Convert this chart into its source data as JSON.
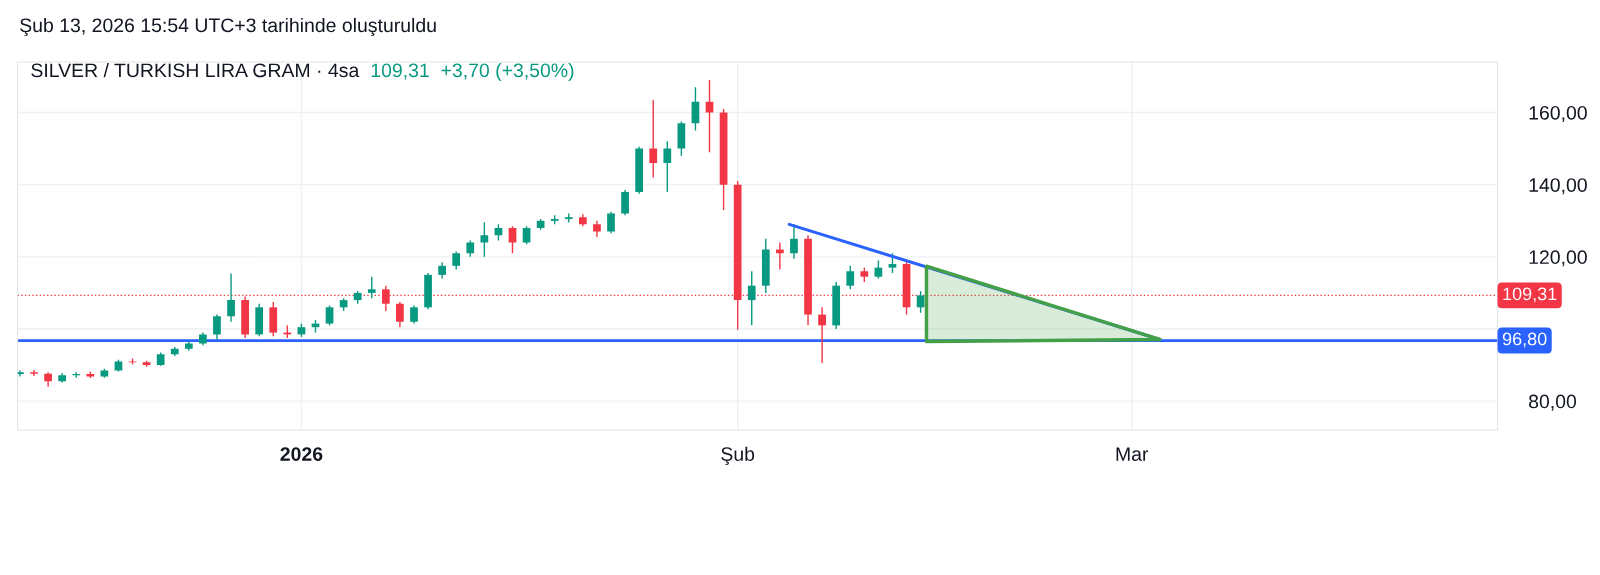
{
  "chart_data": {
    "type": "candlestick",
    "title": "SILVER / TURKISH LIRA GRAM · 4sa",
    "subtitle": "109,31  +3,70 (+3,50%)",
    "annotations": [
      "Şub 13, 2026 15:54 UTC+3 tarihinde oluşturuldu"
    ],
    "x": [
      "2025-12-12",
      "2025-12-13",
      "2025-12-14",
      "2025-12-15",
      "2025-12-16",
      "2025-12-17",
      "2025-12-18",
      "2025-12-19",
      "2025-12-20",
      "2025-12-21",
      "2025-12-22",
      "2025-12-23",
      "2025-12-24",
      "2025-12-25",
      "2025-12-26",
      "2025-12-27",
      "2025-12-28",
      "2025-12-29",
      "2025-12-30",
      "2025-12-31",
      "2026-01-01",
      "2026-01-02",
      "2026-01-03",
      "2026-01-04",
      "2026-01-05",
      "2026-01-06",
      "2026-01-07",
      "2026-01-08",
      "2026-01-09",
      "2026-01-10",
      "2026-01-11",
      "2026-01-12",
      "2026-01-13",
      "2026-01-14",
      "2026-01-15",
      "2026-01-16",
      "2026-01-17",
      "2026-01-18",
      "2026-01-19",
      "2026-01-20",
      "2026-01-21",
      "2026-01-22",
      "2026-01-23",
      "2026-01-24",
      "2026-01-25",
      "2026-01-26",
      "2026-01-27",
      "2026-01-28",
      "2026-01-29",
      "2026-01-30",
      "2026-01-31",
      "2026-02-01",
      "2026-02-02",
      "2026-02-03",
      "2026-02-04",
      "2026-02-05",
      "2026-02-06",
      "2026-02-07",
      "2026-02-08",
      "2026-02-09",
      "2026-02-10",
      "2026-02-11",
      "2026-02-12",
      "2026-02-13",
      "2026-02-14"
    ],
    "ohlc": [
      [
        87.5,
        88.5,
        86.8,
        88
      ],
      [
        88,
        88.6,
        87,
        87.6
      ],
      [
        87.6,
        88,
        84,
        85.5
      ],
      [
        85.5,
        87.8,
        85.2,
        87.2
      ],
      [
        87.2,
        88,
        86.5,
        87.5
      ],
      [
        87.5,
        88.2,
        86.4,
        86.8
      ],
      [
        86.8,
        89,
        86.5,
        88.5
      ],
      [
        88.5,
        91.5,
        88.2,
        91
      ],
      [
        91,
        91.8,
        90.2,
        90.8
      ],
      [
        90.8,
        91.2,
        89.5,
        90
      ],
      [
        90,
        93.5,
        89.8,
        93
      ],
      [
        93,
        95,
        92.5,
        94.5
      ],
      [
        94.5,
        96.5,
        94,
        96
      ],
      [
        96,
        99,
        95.5,
        98.5
      ],
      [
        98.5,
        104,
        97,
        103.5
      ],
      [
        103.5,
        115.4,
        102,
        108
      ],
      [
        108,
        109,
        97.5,
        98.5
      ],
      [
        98.5,
        107,
        98,
        106
      ],
      [
        106,
        107.5,
        98,
        99
      ],
      [
        99,
        101,
        97.5,
        98.5
      ],
      [
        98.5,
        101.5,
        97.8,
        100.5
      ],
      [
        100.5,
        102.5,
        99,
        101.5
      ],
      [
        101.5,
        106.5,
        101,
        106
      ],
      [
        106,
        108.5,
        105,
        108
      ],
      [
        108,
        110.5,
        107,
        110
      ],
      [
        110,
        114.5,
        108.5,
        111
      ],
      [
        111,
        112,
        105,
        107
      ],
      [
        107,
        107.5,
        100.5,
        102
      ],
      [
        102,
        106.5,
        101.5,
        106
      ],
      [
        106,
        115.5,
        105.5,
        115
      ],
      [
        115,
        118.5,
        114,
        117.5
      ],
      [
        117.5,
        121.5,
        116.5,
        121
      ],
      [
        121,
        124.5,
        120,
        124
      ],
      [
        124,
        129.6,
        120,
        126
      ],
      [
        126,
        129,
        124.5,
        128
      ],
      [
        128,
        128.5,
        121,
        124
      ],
      [
        124,
        128.5,
        123.5,
        128
      ],
      [
        128,
        130.5,
        127.5,
        130
      ],
      [
        130,
        131.5,
        129,
        130.5
      ],
      [
        130.5,
        132,
        129.5,
        131
      ],
      [
        131,
        131.8,
        128.5,
        129
      ],
      [
        129,
        130,
        125.5,
        127
      ],
      [
        127,
        132.5,
        126.5,
        132
      ],
      [
        132,
        138.5,
        131.5,
        138
      ],
      [
        138,
        150.5,
        137.5,
        150
      ],
      [
        150,
        163.5,
        142,
        146
      ],
      [
        146,
        152,
        138,
        150
      ],
      [
        150,
        157.5,
        148,
        157
      ],
      [
        157,
        167,
        155,
        163
      ],
      [
        163,
        169,
        149,
        160
      ],
      [
        160,
        161,
        133,
        140
      ],
      [
        140,
        141,
        99.8,
        108
      ],
      [
        108,
        116,
        101,
        112
      ],
      [
        112,
        125,
        110,
        122
      ],
      [
        122,
        124,
        116.5,
        121
      ],
      [
        121,
        129,
        119.5,
        125
      ],
      [
        125,
        126,
        101,
        104
      ],
      [
        104,
        106,
        90.6,
        101
      ],
      [
        101,
        113,
        100,
        112
      ],
      [
        112,
        117.5,
        111,
        116
      ],
      [
        116,
        117,
        113,
        114.5
      ],
      [
        114.5,
        119,
        114,
        117
      ],
      [
        117,
        121,
        115.5,
        118
      ],
      [
        118,
        119,
        104,
        106
      ],
      [
        106,
        110.5,
        104.5,
        109.31
      ]
    ],
    "series": [
      {
        "type": "line",
        "color": "#2962ff",
        "x": [
          "2026-02-04T16:00",
          "2026-03-03"
        ],
        "values": [
          129,
          97.1
        ]
      },
      {
        "type": "area",
        "color": "#43a047",
        "x": [
          "2026-02-14T10:00",
          "2026-02-14T10:00",
          "2026-03-03",
          "2026-02-14T10:00"
        ],
        "values": [
          96.5,
          117.4,
          97.1,
          96.5
        ]
      }
    ],
    "ref_lines": [
      {
        "axis": "y",
        "value": 96.8,
        "label": "96,80",
        "color": "#2962ff",
        "line_style": "solid"
      },
      {
        "axis": "y",
        "value": 109.31,
        "label": "109,31",
        "color": "#f23645",
        "line_style": "dotted"
      }
    ],
    "xlim": [
      "2025-12-11T20:00",
      "2026-03-27"
    ],
    "xticks": [
      {
        "value": "2026-01-01",
        "label": "2026"
      },
      {
        "value": "2026-02-01",
        "label": "Şub"
      },
      {
        "value": "2026-03-01",
        "label": "Mar"
      }
    ],
    "ylim": [
      72,
      174
    ],
    "yticks": [
      {
        "value": 80,
        "label": "80,00"
      },
      {
        "value": 100,
        "label": null
      },
      {
        "value": 120,
        "label": "120,00"
      },
      {
        "value": 140,
        "label": "140,00"
      },
      {
        "value": 160,
        "label": "160,00"
      }
    ],
    "grid": true
  }
}
